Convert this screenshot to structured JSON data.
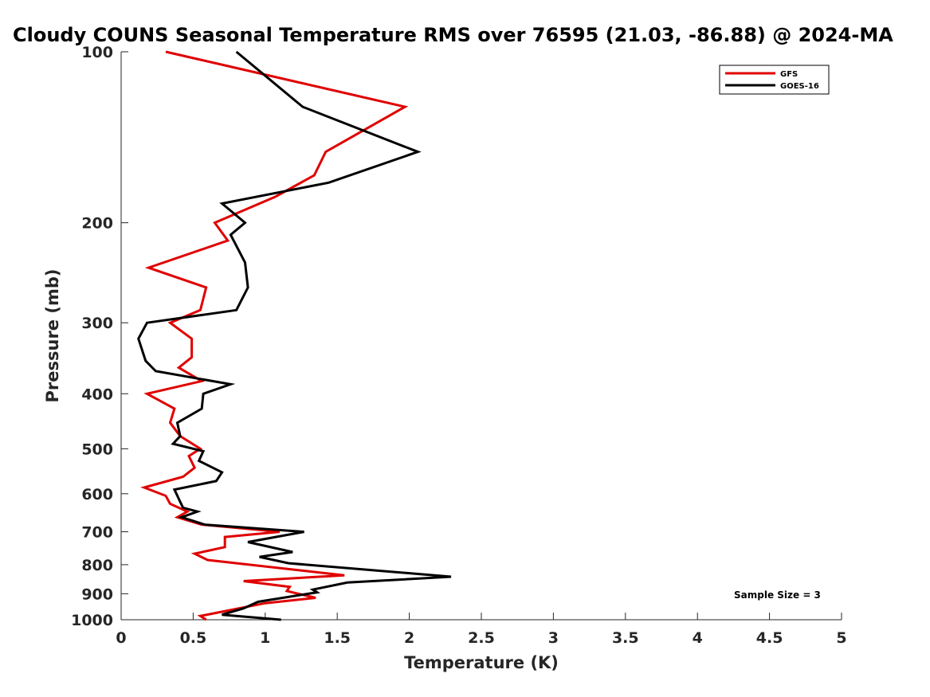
{
  "chart_data": {
    "type": "line",
    "title": "Cloudy COUNS Seasonal Temperature RMS over 76595 (21.03, -86.88) @ 2024-MA",
    "xlabel": "Temperature (K)",
    "ylabel": "Pressure (mb)",
    "xlim": [
      0,
      5
    ],
    "ylim": [
      100,
      1000
    ],
    "y_scale": "log",
    "y_reversed": true,
    "x_ticks": [
      0,
      0.5,
      1,
      1.5,
      2,
      2.5,
      3,
      3.5,
      4,
      4.5,
      5
    ],
    "x_tick_labels": [
      "0",
      "0.5",
      "1",
      "1.5",
      "2",
      "2.5",
      "3",
      "3.5",
      "4",
      "4.5",
      "5"
    ],
    "y_ticks": [
      100,
      200,
      300,
      400,
      500,
      600,
      700,
      800,
      900,
      1000
    ],
    "y_tick_labels": [
      "100",
      "200",
      "300",
      "400",
      "500",
      "600",
      "700",
      "800",
      "900",
      "1000"
    ],
    "legend_position": "top-right",
    "annotation": "Sample Size = 3",
    "series": [
      {
        "name": "GFS",
        "color": "#e00000",
        "points": [
          [
            0.31,
            100
          ],
          [
            1.97,
            125
          ],
          [
            1.42,
            150
          ],
          [
            1.34,
            165
          ],
          [
            1.07,
            180
          ],
          [
            0.65,
            200
          ],
          [
            0.74,
            215
          ],
          [
            0.19,
            240
          ],
          [
            0.59,
            260
          ],
          [
            0.55,
            285
          ],
          [
            0.34,
            300
          ],
          [
            0.49,
            320
          ],
          [
            0.49,
            345
          ],
          [
            0.4,
            360
          ],
          [
            0.56,
            380
          ],
          [
            0.18,
            400
          ],
          [
            0.37,
            425
          ],
          [
            0.34,
            450
          ],
          [
            0.41,
            475
          ],
          [
            0.55,
            500
          ],
          [
            0.47,
            515
          ],
          [
            0.51,
            540
          ],
          [
            0.43,
            560
          ],
          [
            0.16,
            585
          ],
          [
            0.31,
            605
          ],
          [
            0.34,
            625
          ],
          [
            0.46,
            645
          ],
          [
            0.39,
            660
          ],
          [
            0.56,
            680
          ],
          [
            1.1,
            700
          ],
          [
            0.72,
            715
          ],
          [
            0.72,
            745
          ],
          [
            0.51,
            765
          ],
          [
            0.6,
            785
          ],
          [
            1.55,
            835
          ],
          [
            0.85,
            855
          ],
          [
            1.17,
            875
          ],
          [
            1.15,
            890
          ],
          [
            1.35,
            915
          ],
          [
            1.0,
            935
          ],
          [
            0.55,
            985
          ],
          [
            0.59,
            1000
          ]
        ]
      },
      {
        "name": "GOES-16",
        "color": "#000000",
        "points": [
          [
            0.8,
            100
          ],
          [
            1.26,
            125
          ],
          [
            2.06,
            150
          ],
          [
            1.44,
            170
          ],
          [
            0.7,
            185
          ],
          [
            0.86,
            200
          ],
          [
            0.76,
            210
          ],
          [
            0.86,
            235
          ],
          [
            0.88,
            260
          ],
          [
            0.8,
            285
          ],
          [
            0.18,
            300
          ],
          [
            0.12,
            320
          ],
          [
            0.17,
            350
          ],
          [
            0.24,
            365
          ],
          [
            0.76,
            385
          ],
          [
            0.57,
            400
          ],
          [
            0.56,
            425
          ],
          [
            0.39,
            450
          ],
          [
            0.41,
            475
          ],
          [
            0.36,
            490
          ],
          [
            0.57,
            505
          ],
          [
            0.54,
            525
          ],
          [
            0.7,
            550
          ],
          [
            0.66,
            570
          ],
          [
            0.37,
            590
          ],
          [
            0.41,
            620
          ],
          [
            0.43,
            635
          ],
          [
            0.53,
            645
          ],
          [
            0.42,
            660
          ],
          [
            0.58,
            680
          ],
          [
            1.27,
            700
          ],
          [
            0.88,
            730
          ],
          [
            1.19,
            760
          ],
          [
            0.96,
            775
          ],
          [
            1.16,
            795
          ],
          [
            2.29,
            840
          ],
          [
            1.57,
            860
          ],
          [
            1.33,
            885
          ],
          [
            1.36,
            895
          ],
          [
            0.95,
            930
          ],
          [
            0.85,
            955
          ],
          [
            0.7,
            980
          ],
          [
            1.11,
            1000
          ]
        ]
      }
    ]
  }
}
